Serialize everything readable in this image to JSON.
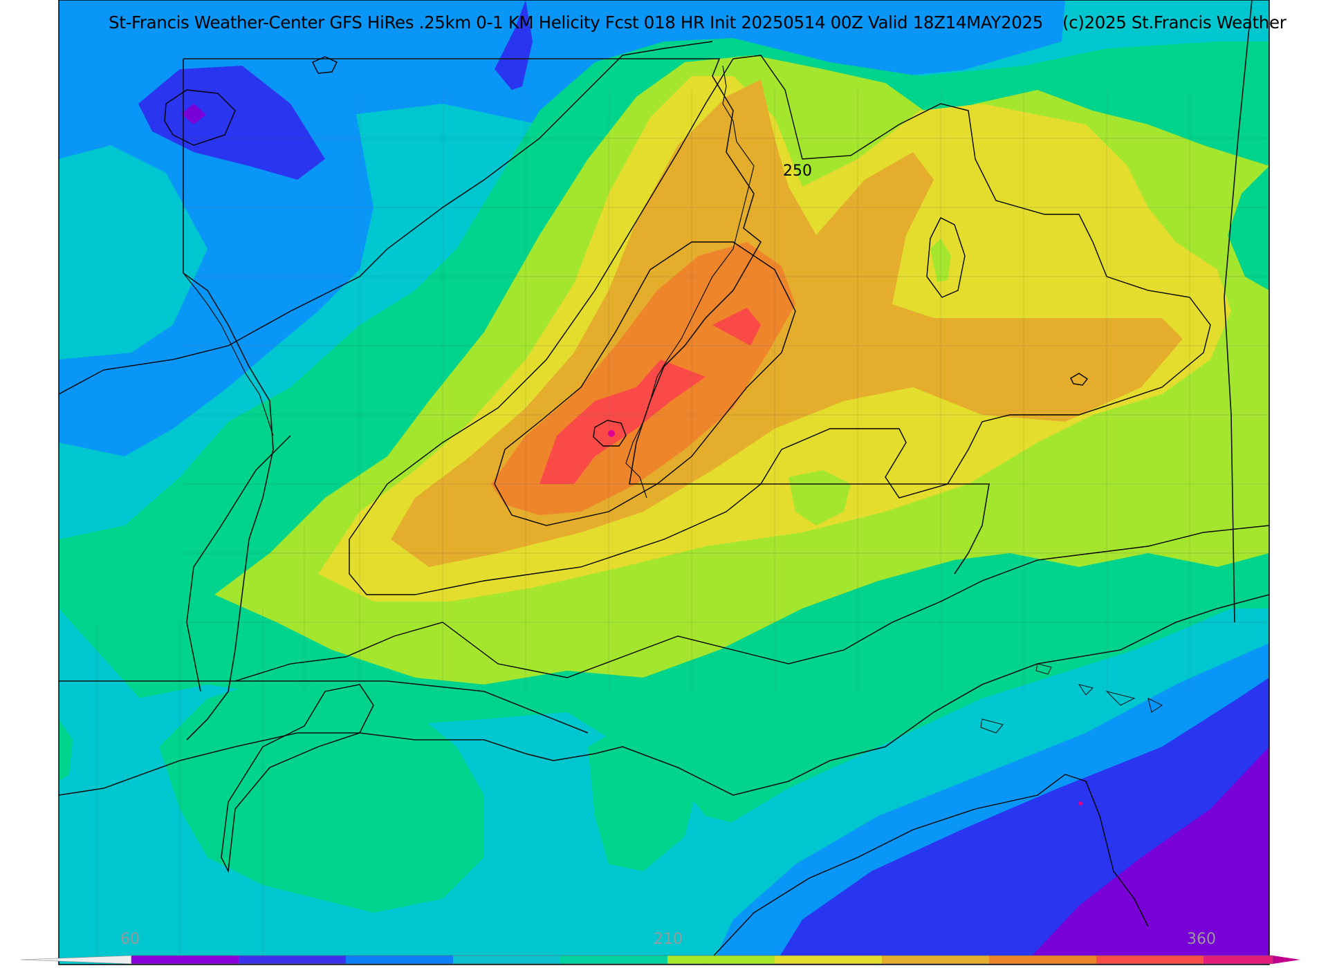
{
  "title": {
    "main": "St-Francis Weather-Center GFS HiRes .25km 0-1 KM Helicity Fcst 018 HR Init 20250514 00Z  Valid 18Z14MAY2025",
    "copyright": "(c)2025 St.Francis Weather"
  },
  "contour_label": "250",
  "colorbar": {
    "labels": [
      "60",
      "210",
      "360"
    ],
    "colors": [
      "#ffffff",
      "#8a00dd",
      "#3a32ee",
      "#0c7ef8",
      "#0cc2cf",
      "#00d3a0",
      "#00d880",
      "#a6e82c",
      "#e4dd2e",
      "#e5ad2c",
      "#ee842a",
      "#f84c46",
      "#e41c7c",
      "#c0008a"
    ]
  },
  "fill_colors": {
    "band_50": "#7a00d8",
    "band_75": "#2a35ef",
    "band_100": "#0a96f7",
    "band_125": "#00c6cf",
    "band_150": "#00d38c",
    "band_175": "#a4e62e",
    "band_200": "#e4dd2e",
    "band_225": "#e4ad2c",
    "band_250": "#ef852b",
    "band_275": "#f94a47",
    "band_300": "#e00090"
  }
}
